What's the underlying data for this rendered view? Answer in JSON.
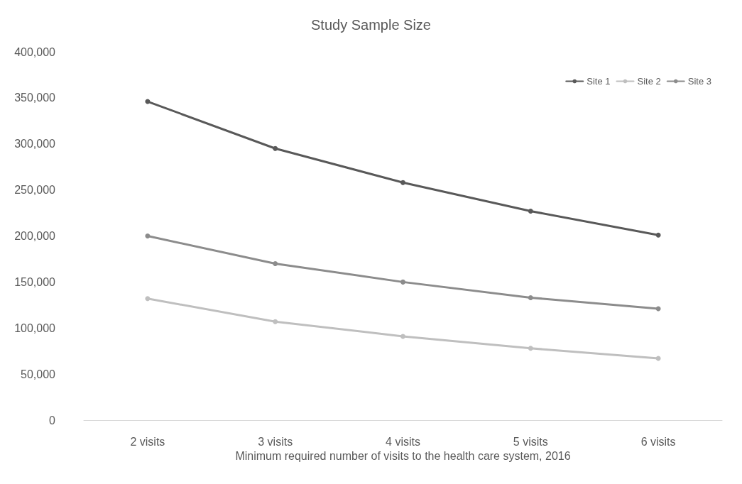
{
  "chart_data": {
    "type": "line",
    "title": "Study Sample Size",
    "xlabel": "Minimum required number of visits to the health care system, 2016",
    "categories": [
      "2 visits",
      "3 visits",
      "4 visits",
      "5 visits",
      "6 visits"
    ],
    "series": [
      {
        "name": "Site 1",
        "color": "#595959",
        "values": [
          346000,
          295000,
          258000,
          227000,
          201000
        ]
      },
      {
        "name": "Site 2",
        "color": "#bfbfbf",
        "values": [
          132000,
          107000,
          91000,
          78000,
          67000
        ]
      },
      {
        "name": "Site 3",
        "color": "#8c8c8c",
        "values": [
          200000,
          170000,
          150000,
          133000,
          121000
        ]
      }
    ],
    "ylim": [
      0,
      400000
    ],
    "yticks": [
      {
        "value": 0,
        "label": "0"
      },
      {
        "value": 50000,
        "label": "50,000"
      },
      {
        "value": 100000,
        "label": "100,000"
      },
      {
        "value": 150000,
        "label": "150,000"
      },
      {
        "value": 200000,
        "label": "200,000"
      },
      {
        "value": 250000,
        "label": "250,000"
      },
      {
        "value": 300000,
        "label": "300,000"
      },
      {
        "value": 350000,
        "label": "350,000"
      },
      {
        "value": 400000,
        "label": "400,000"
      }
    ],
    "grid": false,
    "legend": "top right",
    "marker": "circle",
    "line_style": "solid"
  }
}
